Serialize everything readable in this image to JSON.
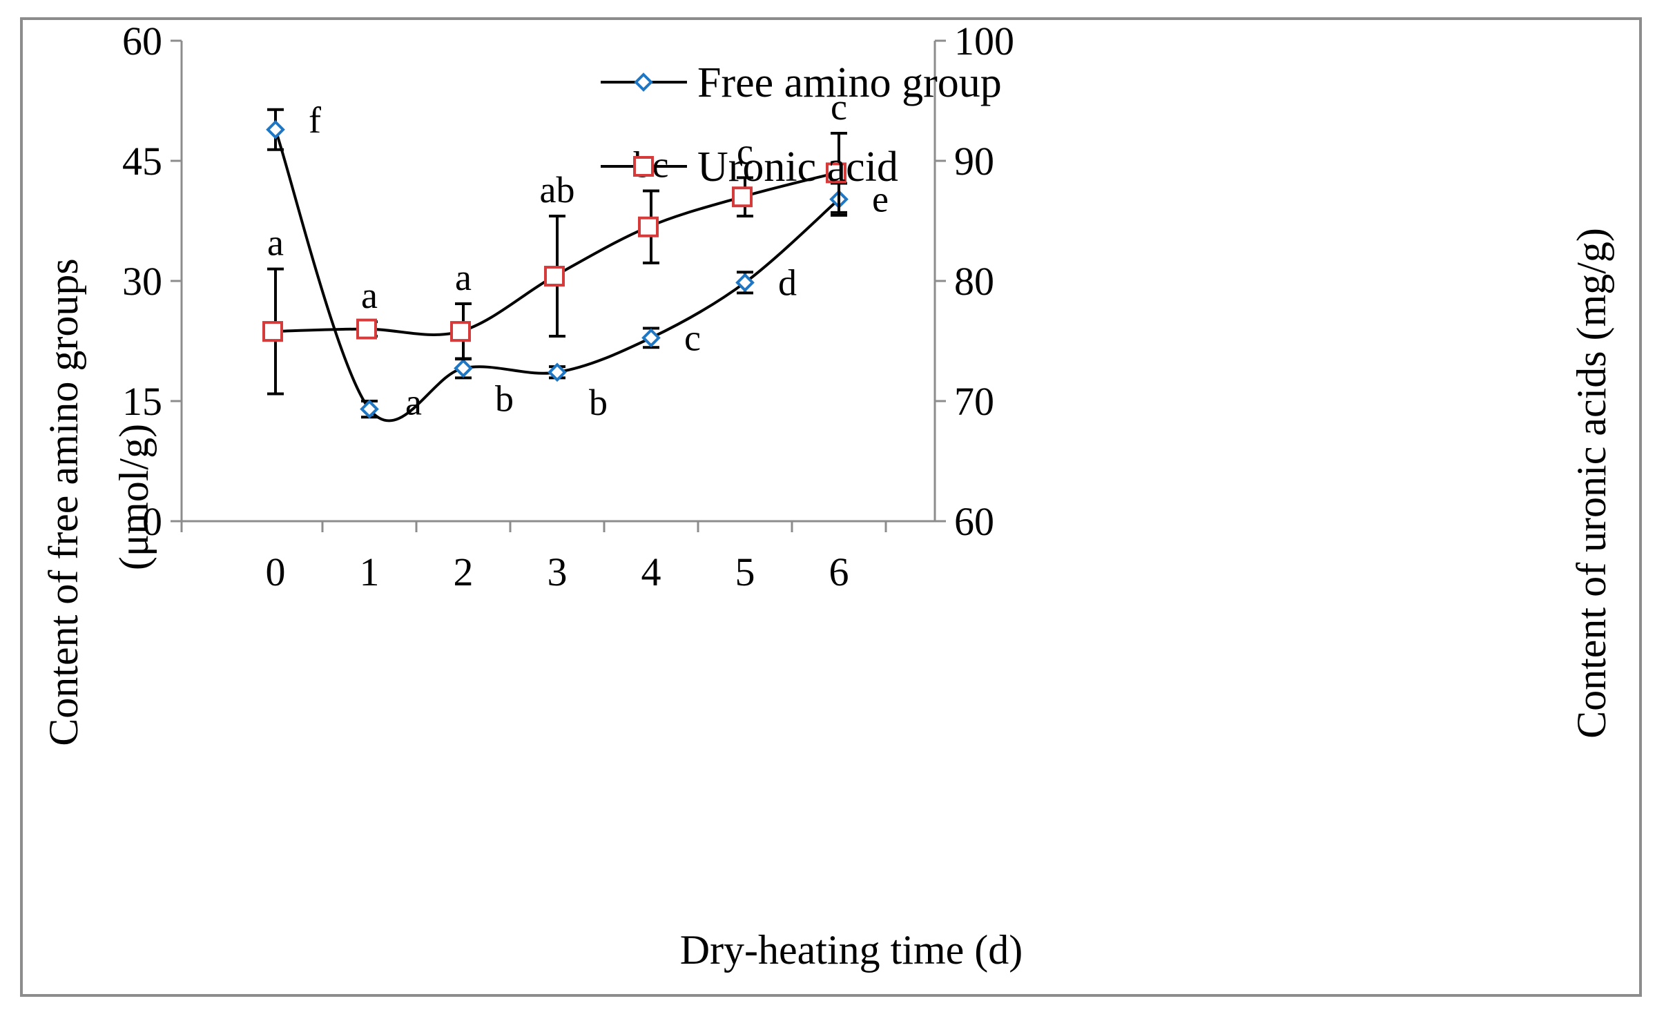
{
  "chart_data": {
    "type": "line",
    "xlabel": "Dry-heating time (d)",
    "ylabel_left": [
      "Content of free amino groups",
      "(μmol/g)"
    ],
    "ylabel_right": "Content of uronic acids (mg/g)",
    "x": [
      0,
      1,
      2,
      3,
      4,
      5,
      6
    ],
    "x_ticks": [
      "0",
      "1",
      "2",
      "3",
      "4",
      "5",
      "6"
    ],
    "xlim": [
      -1,
      7
    ],
    "ylim_left": [
      0,
      60
    ],
    "ylim_right": [
      60,
      100
    ],
    "y_ticks_left": [
      "0",
      "15",
      "30",
      "45",
      "60"
    ],
    "y_ticks_right": [
      "60",
      "70",
      "80",
      "90",
      "100"
    ],
    "legend_position": "top-center",
    "series": [
      {
        "name": "Free amino group",
        "axis": "left",
        "marker": "diamond",
        "color": "#1f77c4",
        "values": [
          48.9,
          14.0,
          19.1,
          18.6,
          22.9,
          29.8,
          40.2
        ],
        "errors": [
          2.5,
          1.0,
          1.2,
          0.7,
          1.2,
          1.3,
          2.0
        ],
        "labels": [
          "f",
          "a",
          "b",
          "b",
          "c",
          "d",
          "e"
        ]
      },
      {
        "name": "Uronic acid",
        "axis": "right",
        "marker": "square",
        "color": "#d63b3b",
        "values": [
          75.8,
          76.0,
          75.8,
          80.4,
          84.5,
          87.0,
          89.0
        ],
        "errors": [
          5.2,
          0.6,
          2.3,
          5.0,
          3.0,
          1.6,
          3.3
        ],
        "labels": [
          "a",
          "a",
          "a",
          "ab",
          "bc",
          "c",
          "c"
        ]
      }
    ]
  }
}
